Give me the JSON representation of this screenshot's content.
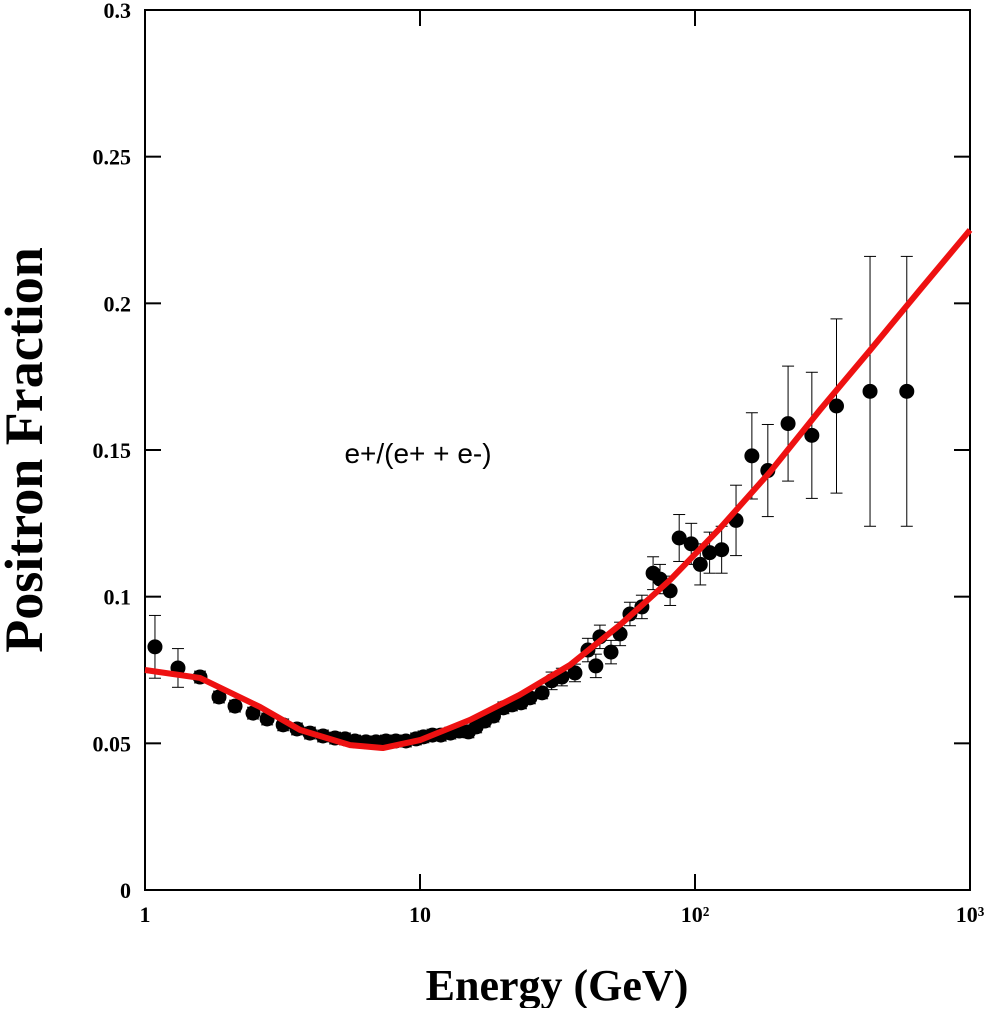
{
  "chart_data": {
    "type": "scatter",
    "annotation": "e+/(e+ + e-)",
    "xlabel": "Energy (GeV)",
    "ylabel": "Positron Fraction",
    "log_x": true,
    "xlim": [
      1,
      1000
    ],
    "ylim": [
      0,
      0.3
    ],
    "xticks": [
      1,
      10,
      {
        "value": 100,
        "label": "10²"
      },
      {
        "value": 1000,
        "label": "10³"
      }
    ],
    "yticks": [
      0,
      0.05,
      0.1,
      0.15,
      0.2,
      0.25,
      0.3
    ],
    "series": [
      {
        "type": "scatter",
        "color": "#000000",
        "x": [
          1.087,
          1.318,
          1.585,
          1.858,
          2.125,
          2.47,
          2.78,
          3.18,
          3.57,
          3.98,
          4.44,
          4.91,
          5.34,
          5.8,
          6.36,
          6.92,
          7.52,
          8.17,
          8.89,
          9.67,
          10.3,
          11.1,
          11.9,
          12.9,
          13.9,
          15.0,
          16.0,
          17.2,
          18.5,
          20.1,
          21.6,
          23.3,
          25.1,
          27.8,
          30.1,
          32.8,
          36.6,
          40.8,
          43.6,
          45.1,
          49.5,
          53.4,
          58.0,
          64.1,
          70.4,
          74.6,
          81.2,
          87.6,
          96.9,
          104.5,
          113,
          125,
          141,
          161,
          184,
          218,
          266,
          327,
          433,
          589
        ],
        "values": [
          0.0829,
          0.0757,
          0.0726,
          0.0658,
          0.0627,
          0.0603,
          0.0583,
          0.0563,
          0.0549,
          0.0535,
          0.0525,
          0.0518,
          0.0515,
          0.0508,
          0.0505,
          0.0505,
          0.0508,
          0.0508,
          0.0508,
          0.0515,
          0.0522,
          0.0528,
          0.0528,
          0.0535,
          0.0542,
          0.0539,
          0.0556,
          0.0576,
          0.0593,
          0.0621,
          0.0631,
          0.0638,
          0.0655,
          0.0672,
          0.0713,
          0.0726,
          0.074,
          0.0818,
          0.0764,
          0.0863,
          0.0811,
          0.0873,
          0.0941,
          0.0965,
          0.108,
          0.106,
          0.102,
          0.12,
          0.118,
          0.111,
          0.115,
          0.116,
          0.126,
          0.148,
          0.143,
          0.159,
          0.155,
          0.165,
          0.17,
          0.17
        ],
        "errors": [
          0.0107,
          0.0066,
          0.002,
          0.002,
          0.002,
          0.002,
          0.002,
          0.002,
          0.002,
          0.002,
          0.002,
          0.002,
          0.002,
          0.002,
          0.002,
          0.002,
          0.002,
          0.002,
          0.002,
          0.002,
          0.002,
          0.002,
          0.002,
          0.002,
          0.002,
          0.002,
          0.002,
          0.002,
          0.002,
          0.002,
          0.002,
          0.002,
          0.002,
          0.002,
          0.003,
          0.003,
          0.003,
          0.004,
          0.004,
          0.004,
          0.004,
          0.004,
          0.004,
          0.004,
          0.0056,
          0.005,
          0.005,
          0.008,
          0.007,
          0.007,
          0.007,
          0.008,
          0.012,
          0.0147,
          0.0157,
          0.0196,
          0.0215,
          0.0297,
          0.046,
          0.046
        ]
      },
      {
        "type": "line",
        "color": "#ee1111",
        "x": [
          1,
          1.585,
          2.62,
          3.66,
          5.57,
          7.33,
          10,
          15.2,
          23.0,
          35.1,
          53.4,
          81.2,
          123.5,
          187.4,
          285,
          433,
          658,
          1000
        ],
        "values": [
          0.075,
          0.0723,
          0.0624,
          0.0546,
          0.0494,
          0.0484,
          0.0511,
          0.058,
          0.0665,
          0.0767,
          0.0904,
          0.1057,
          0.1234,
          0.1425,
          0.1637,
          0.184,
          0.2046,
          0.225
        ]
      }
    ]
  }
}
